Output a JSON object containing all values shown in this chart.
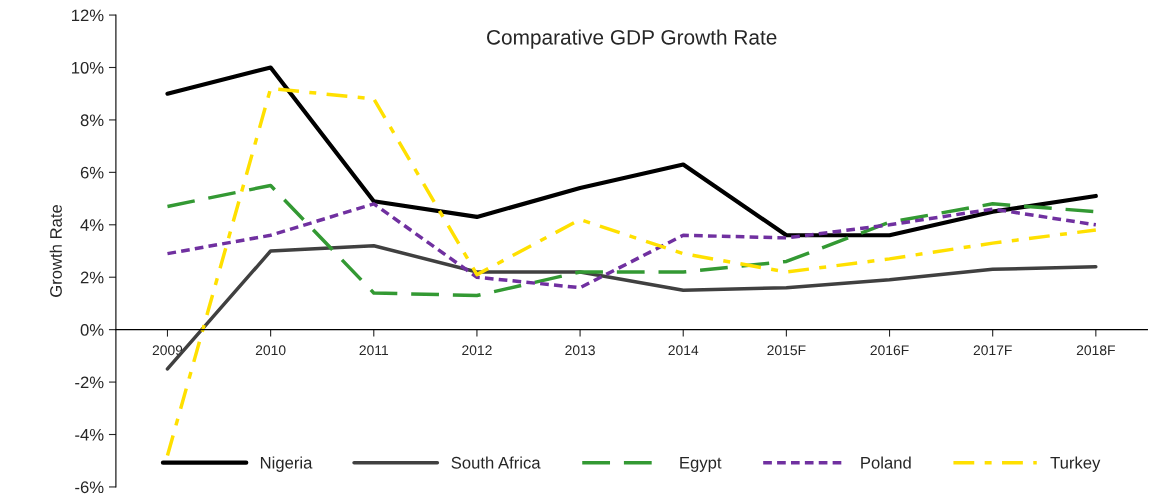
{
  "chart_data": {
    "type": "line",
    "title": "Comparative GDP Growth Rate",
    "ylabel": "Growth Rate",
    "categories": [
      "2009",
      "2010",
      "2011",
      "2012",
      "2013",
      "2014",
      "2015F",
      "2016F",
      "2017F",
      "2018F"
    ],
    "series": [
      {
        "name": "Nigeria",
        "color": "#000000",
        "line_style": "solid",
        "values": [
          9,
          10,
          4.9,
          4.3,
          5.4,
          6.3,
          3.6,
          3.6,
          4.5,
          5.1
        ]
      },
      {
        "name": "South Africa",
        "color": "#404040",
        "line_style": "solid",
        "values": [
          -1.5,
          3.0,
          3.2,
          2.2,
          2.2,
          1.5,
          1.6,
          1.9,
          2.3,
          2.4
        ]
      },
      {
        "name": "Egypt",
        "color": "#339933",
        "line_style": "dashed",
        "values": [
          4.7,
          5.5,
          1.4,
          1.3,
          2.2,
          2.2,
          2.6,
          4.1,
          4.8,
          4.5
        ]
      },
      {
        "name": "Poland",
        "color": "#7030a0",
        "line_style": "dotted",
        "values": [
          2.9,
          3.6,
          4.8,
          2.0,
          1.6,
          3.6,
          3.5,
          4.0,
          4.6,
          4.0
        ]
      },
      {
        "name": "Turkey",
        "color": "#ffe000",
        "line_style": "dashdot",
        "values": [
          -4.8,
          9.2,
          8.8,
          2.1,
          4.2,
          2.9,
          2.2,
          2.7,
          3.3,
          3.8
        ]
      }
    ],
    "ylim": [
      -6,
      12
    ],
    "yticks": [
      {
        "value": -6,
        "label": "-6%"
      },
      {
        "value": -4,
        "label": "-4%"
      },
      {
        "value": -2,
        "label": "-2%"
      },
      {
        "value": 0,
        "label": "0%"
      },
      {
        "value": 2,
        "label": "2%"
      },
      {
        "value": 4,
        "label": "4%"
      },
      {
        "value": 6,
        "label": "6%"
      },
      {
        "value": 8,
        "label": "8%"
      },
      {
        "value": 10,
        "label": "10%"
      },
      {
        "value": 12,
        "label": "12%"
      }
    ],
    "grid": false,
    "legend": "bottom",
    "marker": "none"
  }
}
